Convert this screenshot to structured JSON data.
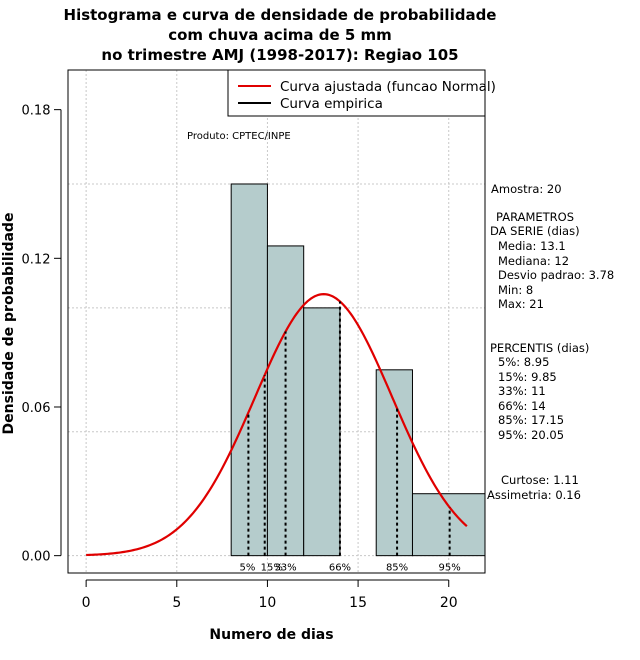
{
  "chart_data": {
    "type": "histogram",
    "title_lines": [
      "Histograma e curva de densidade de probabilidade",
      "com chuva acima de 5 mm",
      "no trimestre AMJ (1998-2017): Regiao 105"
    ],
    "xlabel": "Numero de dias",
    "ylabel": "Densidade de probabilidade",
    "xlim": [
      -1,
      22
    ],
    "ylim": [
      -0.007,
      0.196
    ],
    "x_ticks": [
      0,
      5,
      10,
      15,
      20
    ],
    "y_ticks": [
      0.0,
      0.06,
      0.12,
      0.18
    ],
    "y_tick_labels": [
      "0.00",
      "0.06",
      "0.12",
      "0.18"
    ],
    "h_grid": [
      0.0,
      0.05,
      0.1,
      0.15
    ],
    "bins": [
      {
        "start": 8,
        "end": 10,
        "density": 0.15
      },
      {
        "start": 10,
        "end": 12,
        "density": 0.125
      },
      {
        "start": 12,
        "end": 14,
        "density": 0.1
      },
      {
        "start": 14,
        "end": 16,
        "density": 0.0
      },
      {
        "start": 16,
        "end": 18,
        "density": 0.075
      },
      {
        "start": 18,
        "end": 22,
        "density": 0.025
      }
    ],
    "normal_fit": {
      "mean": 13.1,
      "sd": 3.78,
      "x_range": [
        0,
        21
      ]
    },
    "percentile_marks": [
      {
        "label": "5%",
        "x": 8.95
      },
      {
        "label": "15%",
        "x": 9.85
      },
      {
        "label": "33%",
        "x": 11
      },
      {
        "label": "66%",
        "x": 14
      },
      {
        "label": "85%",
        "x": 17.15
      },
      {
        "label": "95%",
        "x": 20.05
      }
    ],
    "legend": [
      {
        "label": "Curva ajustada (funcao Normal)",
        "color": "#e00000"
      },
      {
        "label": "Curva empirica",
        "color": "#000000"
      }
    ],
    "legend_position": "top-right",
    "annotation": "Produto: CPTEC/INPE",
    "colors": {
      "bar_fill": "#b5cccc",
      "curve": "#e00000",
      "grid": "#c8c8c8"
    }
  },
  "stats": {
    "amostra": "Amostra: 20",
    "parametros": [
      "PARAMETROS",
      "DA SERIE (dias)",
      "Media: 13.1",
      "Mediana: 12",
      "Desvio padrao: 3.78",
      "Min: 8",
      "Max: 21"
    ],
    "percentis": [
      "PERCENTIS (dias)",
      "5%: 8.95",
      "15%: 9.85",
      "33%: 11",
      "66%: 14",
      "85%: 17.15",
      "95%: 20.05"
    ],
    "curtose": "Curtose: 1.11",
    "assimetria": "Assimetria: 0.16"
  }
}
